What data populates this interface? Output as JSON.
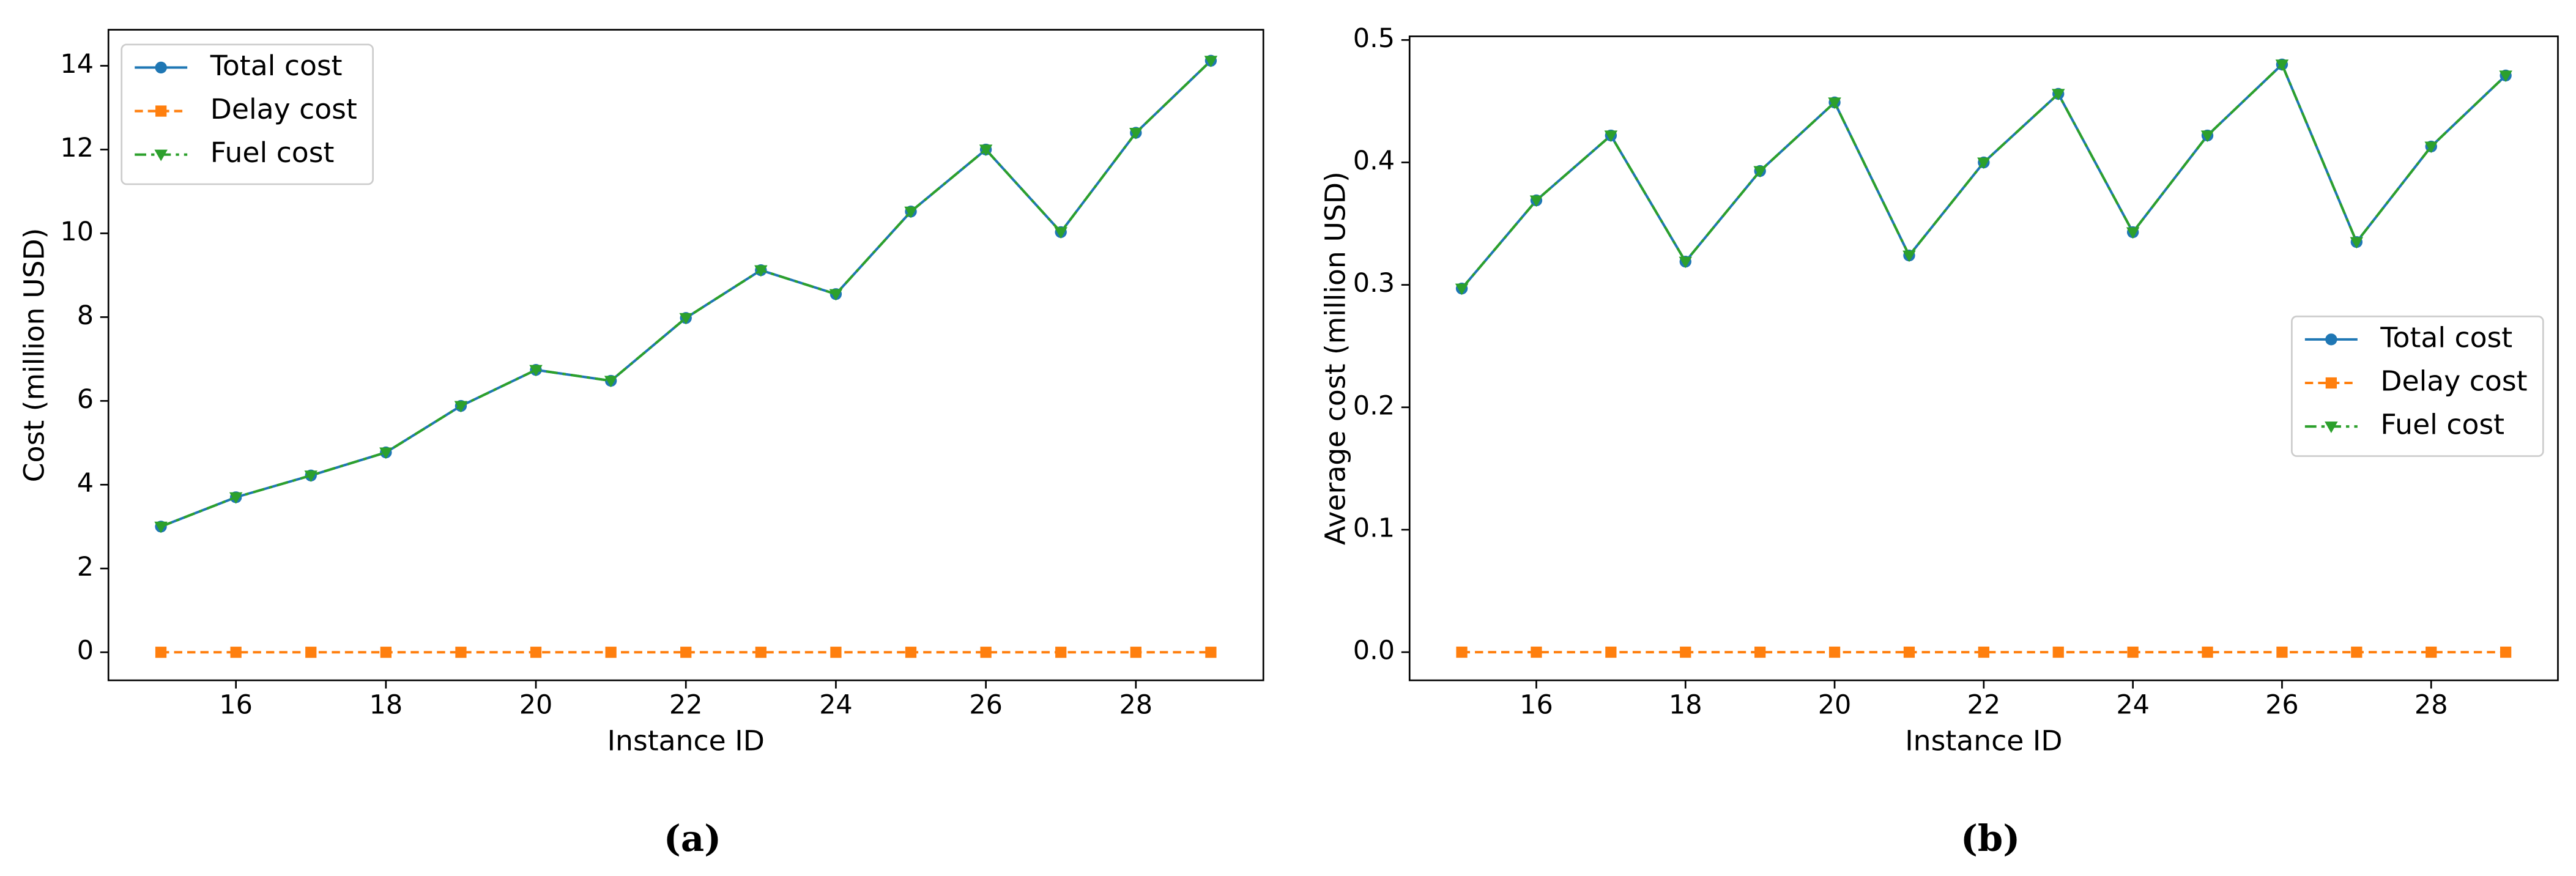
{
  "chart_data": [
    {
      "type": "line",
      "caption": "(a)",
      "xlabel": "Instance ID",
      "ylabel": "Cost (million USD)",
      "x": [
        15,
        16,
        17,
        18,
        19,
        20,
        21,
        22,
        23,
        24,
        25,
        26,
        27,
        28,
        29
      ],
      "series": [
        {
          "name": "Total cost",
          "color": "#1f77b4",
          "linestyle": "solid",
          "marker": "circle",
          "values": [
            3.0,
            3.7,
            4.22,
            4.77,
            5.88,
            6.74,
            6.48,
            7.98,
            9.12,
            8.55,
            10.52,
            12.0,
            10.03,
            12.4,
            14.12
          ]
        },
        {
          "name": "Delay cost",
          "color": "#ff7f0e",
          "linestyle": "dashed",
          "marker": "square",
          "values": [
            0,
            0,
            0,
            0,
            0,
            0,
            0,
            0,
            0,
            0,
            0,
            0,
            0,
            0,
            0
          ]
        },
        {
          "name": "Fuel cost",
          "color": "#2ca02c",
          "linestyle": "dashdot",
          "marker": "triangle-down",
          "values": [
            3.0,
            3.7,
            4.22,
            4.77,
            5.88,
            6.74,
            6.48,
            7.98,
            9.12,
            8.55,
            10.52,
            12.0,
            10.03,
            12.4,
            14.12
          ]
        }
      ],
      "xlim": [
        14.3,
        29.7
      ],
      "ylim": [
        -0.67,
        14.86
      ],
      "xticks": [
        16,
        18,
        20,
        22,
        24,
        26,
        28
      ],
      "yticks": [
        0,
        2,
        4,
        6,
        8,
        10,
        12,
        14
      ],
      "legend": "upper left"
    },
    {
      "type": "line",
      "caption": "(b)",
      "xlabel": "Instance ID",
      "ylabel": "Average cost (million USD)",
      "x": [
        15,
        16,
        17,
        18,
        19,
        20,
        21,
        22,
        23,
        24,
        25,
        26,
        27,
        28,
        29
      ],
      "series": [
        {
          "name": "Total cost",
          "color": "#1f77b4",
          "linestyle": "solid",
          "marker": "circle",
          "values": [
            0.297,
            0.369,
            0.422,
            0.319,
            0.393,
            0.449,
            0.324,
            0.4,
            0.456,
            0.343,
            0.422,
            0.48,
            0.335,
            0.413,
            0.471
          ]
        },
        {
          "name": "Delay cost",
          "color": "#ff7f0e",
          "linestyle": "dashed",
          "marker": "square",
          "values": [
            0,
            0,
            0,
            0,
            0,
            0,
            0,
            0,
            0,
            0,
            0,
            0,
            0,
            0,
            0
          ]
        },
        {
          "name": "Fuel cost",
          "color": "#2ca02c",
          "linestyle": "dashdot",
          "marker": "triangle-down",
          "values": [
            0.297,
            0.369,
            0.422,
            0.319,
            0.393,
            0.449,
            0.324,
            0.4,
            0.456,
            0.343,
            0.422,
            0.48,
            0.335,
            0.413,
            0.471
          ]
        }
      ],
      "xlim": [
        14.3,
        29.7
      ],
      "ylim": [
        -0.023,
        0.503
      ],
      "xticks": [
        16,
        18,
        20,
        22,
        24,
        26,
        28
      ],
      "yticks": [
        {
          "value": 0,
          "label": "0.0"
        },
        0.1,
        0.2,
        0.3,
        0.4,
        0.5
      ],
      "legend": "center right"
    }
  ]
}
